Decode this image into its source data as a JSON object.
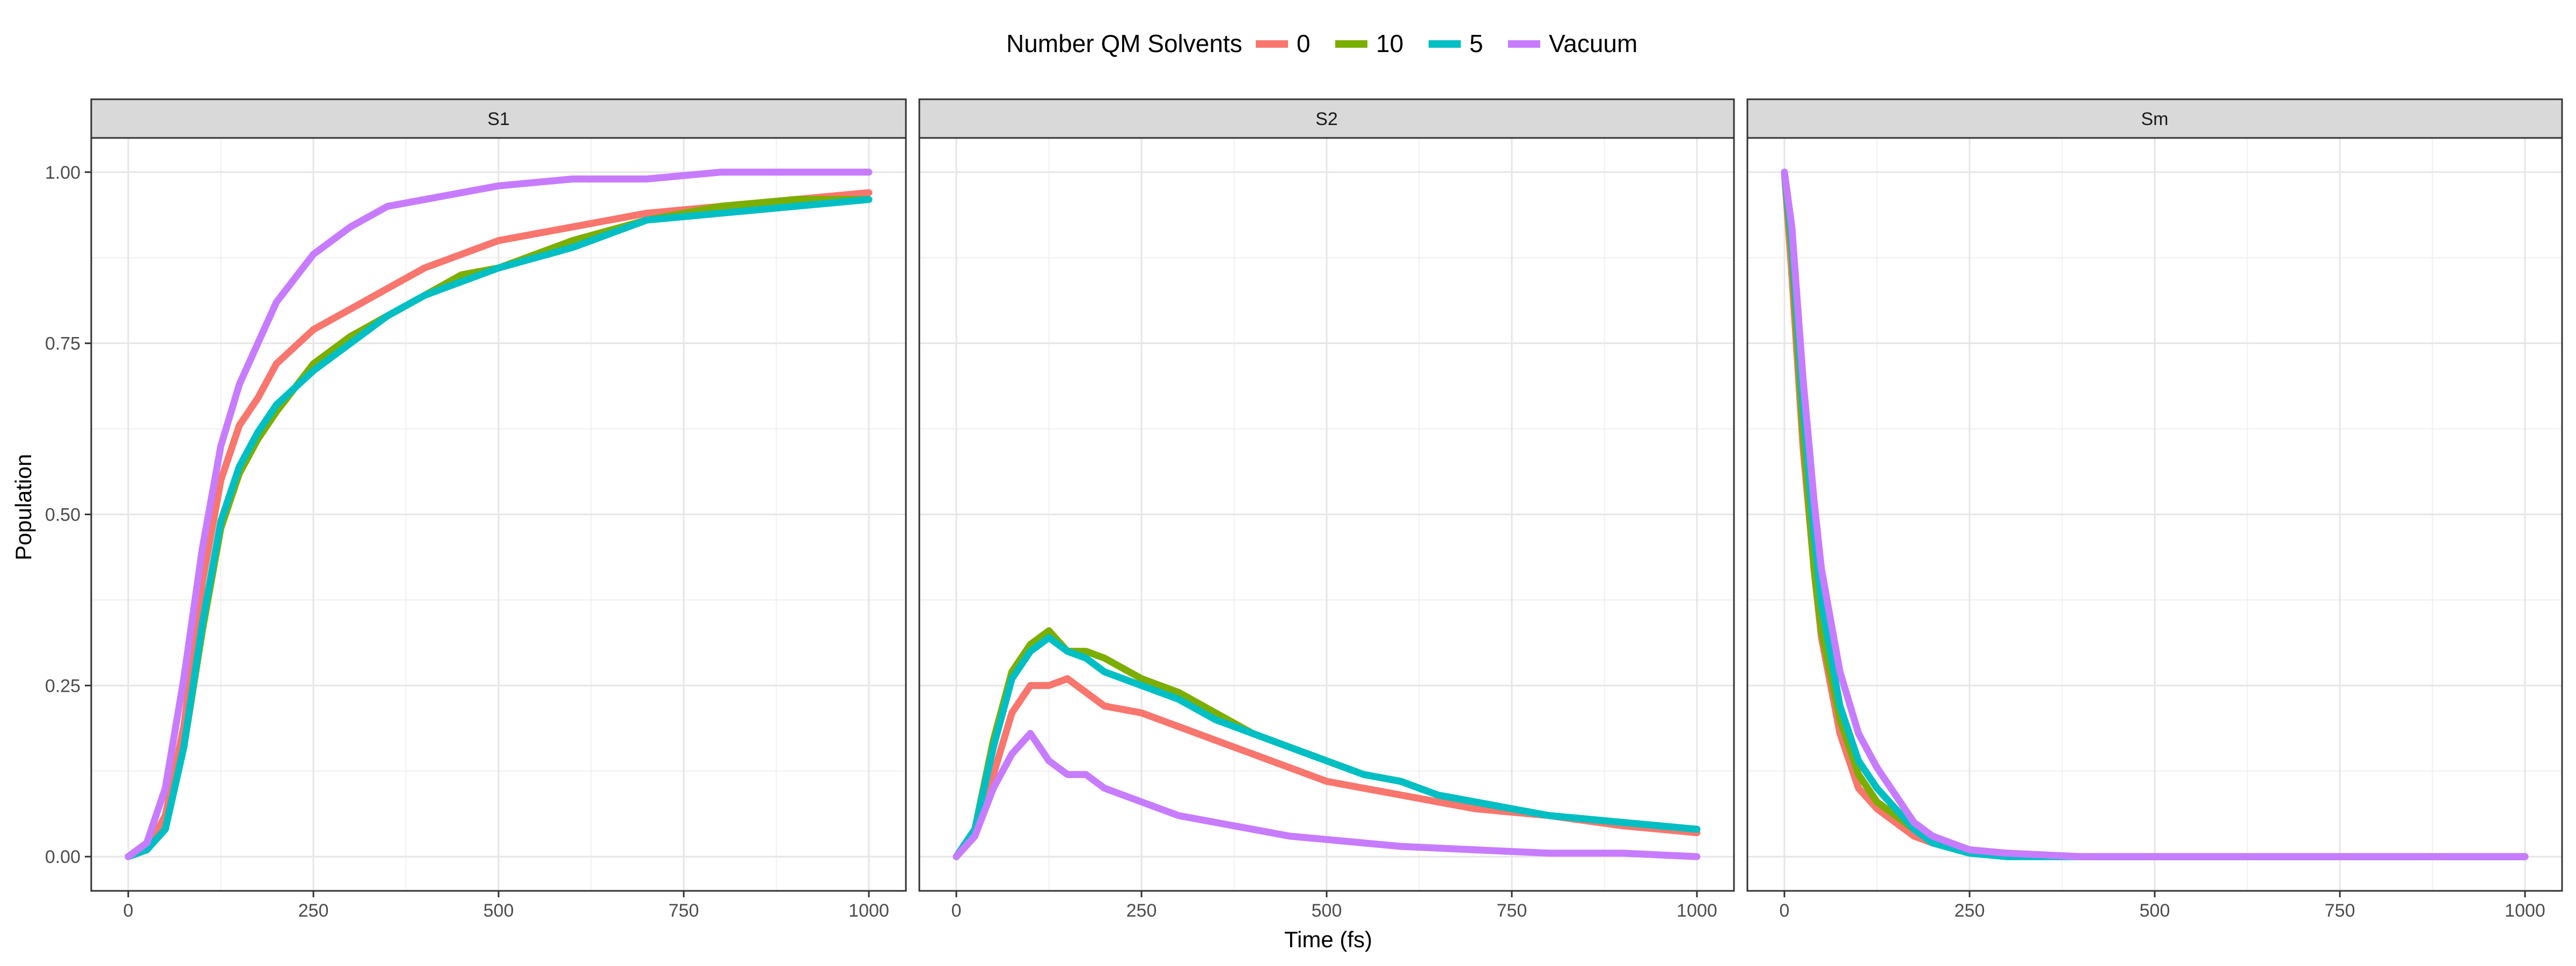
{
  "chart_data": {
    "type": "line",
    "legend": {
      "title": "Number QM Solvents",
      "position": "top"
    },
    "xlabel": "Time (fs)",
    "ylabel": "Population",
    "xlim": [
      -50,
      1050
    ],
    "ylim": [
      -0.05,
      1.05
    ],
    "x_ticks": [
      0,
      250,
      500,
      750,
      1000
    ],
    "x_tick_labels": [
      "0",
      "250",
      "500",
      "750",
      "1000"
    ],
    "y_ticks": [
      0,
      0.25,
      0.5,
      0.75,
      1.0
    ],
    "y_tick_labels": [
      "0.00",
      "0.25",
      "0.50",
      "0.75",
      "1.00"
    ],
    "grid": true,
    "series_styles": [
      {
        "name": "0",
        "color": "#F8766D"
      },
      {
        "name": "10",
        "color": "#7CAE00"
      },
      {
        "name": "5",
        "color": "#00BFC4"
      },
      {
        "name": "Vacuum",
        "color": "#C77CFF"
      }
    ],
    "panels": [
      {
        "title": "S1",
        "series": [
          {
            "name": "0",
            "x": [
              0,
              25,
              50,
              75,
              100,
              125,
              150,
              175,
              200,
              250,
              300,
              350,
              400,
              450,
              500,
              600,
              700,
              800,
              900,
              1000
            ],
            "y": [
              0,
              0.01,
              0.06,
              0.19,
              0.4,
              0.55,
              0.63,
              0.67,
              0.72,
              0.77,
              0.8,
              0.83,
              0.86,
              0.88,
              0.9,
              0.92,
              0.94,
              0.95,
              0.96,
              0.97
            ]
          },
          {
            "name": "10",
            "x": [
              0,
              25,
              50,
              75,
              100,
              125,
              150,
              175,
              200,
              250,
              300,
              350,
              400,
              450,
              500,
              600,
              700,
              800,
              900,
              1000
            ],
            "y": [
              0,
              0.01,
              0.04,
              0.16,
              0.33,
              0.48,
              0.56,
              0.61,
              0.65,
              0.72,
              0.76,
              0.79,
              0.82,
              0.85,
              0.86,
              0.9,
              0.93,
              0.95,
              0.96,
              0.96
            ]
          },
          {
            "name": "5",
            "x": [
              0,
              25,
              50,
              75,
              100,
              125,
              150,
              175,
              200,
              250,
              300,
              350,
              400,
              450,
              500,
              600,
              700,
              800,
              900,
              1000
            ],
            "y": [
              0,
              0.01,
              0.04,
              0.16,
              0.34,
              0.49,
              0.57,
              0.62,
              0.66,
              0.71,
              0.75,
              0.79,
              0.82,
              0.84,
              0.86,
              0.89,
              0.93,
              0.94,
              0.95,
              0.96
            ]
          },
          {
            "name": "Vacuum",
            "x": [
              0,
              25,
              50,
              75,
              100,
              125,
              150,
              175,
              200,
              250,
              300,
              350,
              400,
              450,
              500,
              600,
              700,
              800,
              900,
              1000
            ],
            "y": [
              0,
              0.02,
              0.1,
              0.26,
              0.45,
              0.6,
              0.69,
              0.75,
              0.81,
              0.88,
              0.92,
              0.95,
              0.96,
              0.97,
              0.98,
              0.99,
              0.99,
              1.0,
              1.0,
              1.0
            ]
          }
        ]
      },
      {
        "title": "S2",
        "series": [
          {
            "name": "0",
            "x": [
              0,
              25,
              50,
              75,
              100,
              125,
              150,
              175,
              200,
              250,
              300,
              350,
              400,
              450,
              500,
              550,
              600,
              650,
              700,
              800,
              900,
              1000
            ],
            "y": [
              0,
              0.03,
              0.12,
              0.21,
              0.25,
              0.25,
              0.26,
              0.24,
              0.22,
              0.21,
              0.19,
              0.17,
              0.15,
              0.13,
              0.11,
              0.1,
              0.09,
              0.08,
              0.07,
              0.06,
              0.045,
              0.035
            ]
          },
          {
            "name": "10",
            "x": [
              0,
              25,
              50,
              75,
              100,
              125,
              150,
              175,
              200,
              250,
              300,
              350,
              400,
              450,
              500,
              550,
              600,
              650,
              700,
              800,
              900,
              1000
            ],
            "y": [
              0,
              0.04,
              0.17,
              0.27,
              0.31,
              0.33,
              0.3,
              0.3,
              0.29,
              0.26,
              0.24,
              0.21,
              0.18,
              0.16,
              0.14,
              0.12,
              0.11,
              0.09,
              0.08,
              0.06,
              0.05,
              0.04
            ]
          },
          {
            "name": "5",
            "x": [
              0,
              25,
              50,
              75,
              100,
              125,
              150,
              175,
              200,
              250,
              300,
              350,
              400,
              450,
              500,
              550,
              600,
              650,
              700,
              800,
              900,
              1000
            ],
            "y": [
              0,
              0.04,
              0.16,
              0.26,
              0.3,
              0.32,
              0.3,
              0.29,
              0.27,
              0.25,
              0.23,
              0.2,
              0.18,
              0.16,
              0.14,
              0.12,
              0.11,
              0.09,
              0.08,
              0.06,
              0.05,
              0.04
            ]
          },
          {
            "name": "Vacuum",
            "x": [
              0,
              25,
              50,
              75,
              100,
              125,
              150,
              175,
              200,
              250,
              300,
              350,
              400,
              450,
              500,
              600,
              700,
              800,
              900,
              1000
            ],
            "y": [
              0,
              0.03,
              0.1,
              0.15,
              0.18,
              0.14,
              0.12,
              0.12,
              0.1,
              0.08,
              0.06,
              0.05,
              0.04,
              0.03,
              0.025,
              0.015,
              0.01,
              0.005,
              0.005,
              0.0
            ]
          }
        ]
      },
      {
        "title": "Sm",
        "series": [
          {
            "name": "0",
            "x": [
              0,
              10,
              25,
              40,
              50,
              75,
              100,
              125,
              150,
              175,
              200,
              250,
              300,
              400,
              500,
              600,
              700,
              800,
              900,
              1000
            ],
            "y": [
              1.0,
              0.85,
              0.6,
              0.42,
              0.32,
              0.18,
              0.1,
              0.07,
              0.05,
              0.03,
              0.02,
              0.01,
              0.005,
              0,
              0,
              0,
              0,
              0,
              0,
              0
            ]
          },
          {
            "name": "10",
            "x": [
              0,
              10,
              25,
              40,
              50,
              75,
              100,
              125,
              150,
              175,
              200,
              250,
              300,
              400,
              500,
              600,
              700,
              800,
              900,
              1000
            ],
            "y": [
              1.0,
              0.88,
              0.62,
              0.42,
              0.33,
              0.2,
              0.12,
              0.08,
              0.06,
              0.04,
              0.02,
              0.008,
              0.003,
              0,
              0,
              0,
              0,
              0,
              0,
              0
            ]
          },
          {
            "name": "5",
            "x": [
              0,
              10,
              25,
              40,
              50,
              75,
              100,
              125,
              150,
              175,
              200,
              250,
              300,
              400,
              500,
              600,
              700,
              800,
              900,
              1000
            ],
            "y": [
              1.0,
              0.9,
              0.66,
              0.47,
              0.37,
              0.22,
              0.14,
              0.1,
              0.07,
              0.04,
              0.02,
              0.005,
              0,
              0,
              0,
              0,
              0,
              0,
              0,
              0
            ]
          },
          {
            "name": "Vacuum",
            "x": [
              0,
              10,
              25,
              40,
              50,
              75,
              100,
              125,
              150,
              175,
              200,
              250,
              300,
              400,
              500,
              600,
              700,
              800,
              900,
              1000
            ],
            "y": [
              1.0,
              0.92,
              0.7,
              0.52,
              0.42,
              0.27,
              0.18,
              0.13,
              0.09,
              0.05,
              0.03,
              0.01,
              0.005,
              0,
              0,
              0,
              0,
              0,
              0,
              0
            ]
          }
        ]
      }
    ]
  }
}
